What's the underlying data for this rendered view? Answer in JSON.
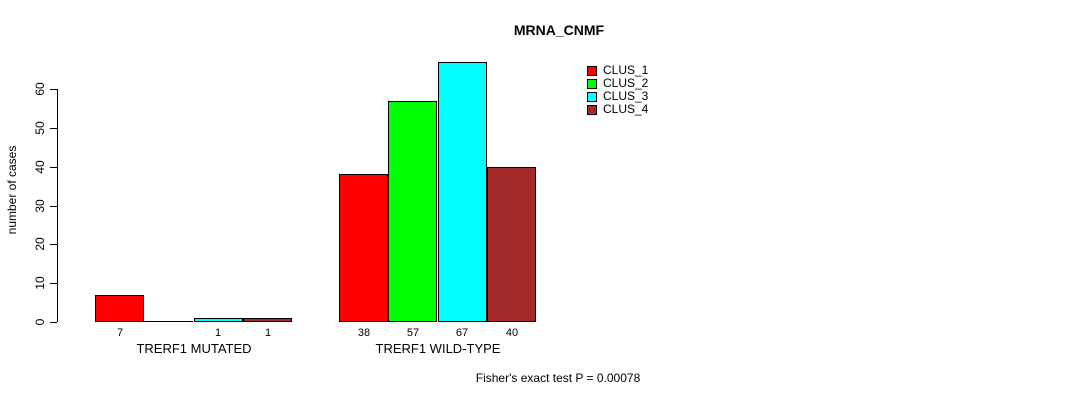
{
  "chart_data": {
    "type": "bar",
    "title": "MRNA_CNMF",
    "xlabel": "",
    "ylabel": "number of cases",
    "ylim": [
      0,
      67
    ],
    "y_ticks": [
      0,
      10,
      20,
      30,
      40,
      50,
      60
    ],
    "grid": false,
    "categories": [
      "TRERF1 MUTATED",
      "TRERF1 WILD-TYPE"
    ],
    "series": [
      {
        "name": "CLUS_1",
        "color": "#FF0000",
        "values": [
          7,
          38
        ]
      },
      {
        "name": "CLUS_2",
        "color": "#00FF00",
        "values": [
          0,
          57
        ]
      },
      {
        "name": "CLUS_3",
        "color": "#00FFFF",
        "values": [
          1,
          67
        ]
      },
      {
        "name": "CLUS_4",
        "color": "#A52A2A",
        "values": [
          1,
          40
        ]
      }
    ],
    "bar_value_labels_shown": true,
    "zero_bars_unlabeled": true,
    "legend_position": "top-right",
    "annotation": "Fisher's exact test P = 0.00078"
  },
  "style": {
    "bar_border_color": "#000000",
    "axis_color": "#000000",
    "background_color": "#FFFFFF"
  }
}
